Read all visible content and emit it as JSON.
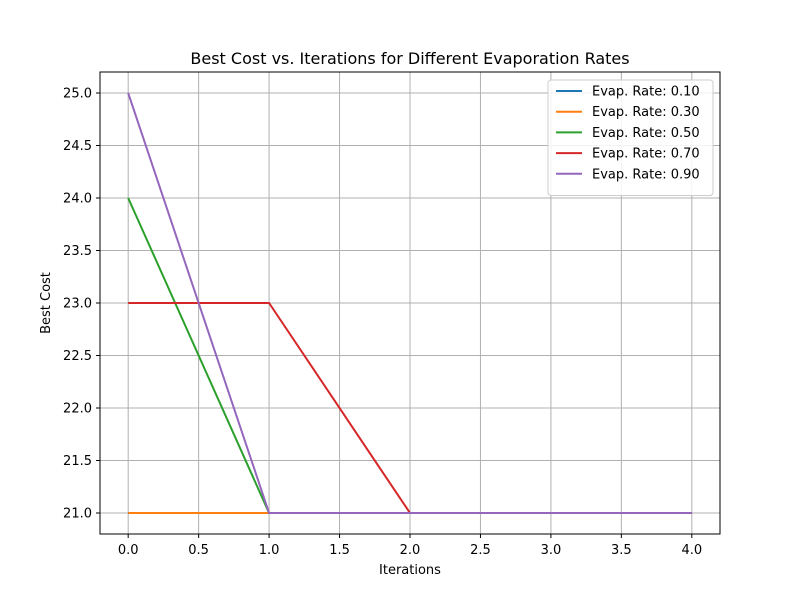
{
  "chart_data": {
    "type": "line",
    "title": "Best Cost vs. Iterations for Different Evaporation Rates",
    "xlabel": "Iterations",
    "ylabel": "Best Cost",
    "xlim": [
      -0.2,
      4.2
    ],
    "ylim": [
      20.8,
      25.2
    ],
    "xticks": [
      0.0,
      0.5,
      1.0,
      1.5,
      2.0,
      2.5,
      3.0,
      3.5,
      4.0
    ],
    "xtick_labels": [
      "0.0",
      "0.5",
      "1.0",
      "1.5",
      "2.0",
      "2.5",
      "3.0",
      "3.5",
      "4.0"
    ],
    "yticks": [
      21.0,
      21.5,
      22.0,
      22.5,
      23.0,
      23.5,
      24.0,
      24.5,
      25.0
    ],
    "ytick_labels": [
      "21.0",
      "21.5",
      "22.0",
      "22.5",
      "23.0",
      "23.5",
      "24.0",
      "24.5",
      "25.0"
    ],
    "grid": true,
    "legend_position": "top-right",
    "x": [
      0,
      1,
      2,
      3,
      4
    ],
    "series": [
      {
        "name": "Evap. Rate: 0.10",
        "color": "#1f77b4",
        "values": [
          21,
          21,
          21,
          21,
          21
        ]
      },
      {
        "name": "Evap. Rate: 0.30",
        "color": "#ff7f0e",
        "values": [
          21,
          21,
          21,
          21,
          21
        ]
      },
      {
        "name": "Evap. Rate: 0.50",
        "color": "#2ca02c",
        "values": [
          24,
          21,
          21,
          21,
          21
        ]
      },
      {
        "name": "Evap. Rate: 0.70",
        "color": "#d62728",
        "values": [
          23,
          23,
          21,
          21,
          21
        ]
      },
      {
        "name": "Evap. Rate: 0.90",
        "color": "#9467bd",
        "values": [
          25,
          21,
          21,
          21,
          21
        ]
      }
    ]
  }
}
